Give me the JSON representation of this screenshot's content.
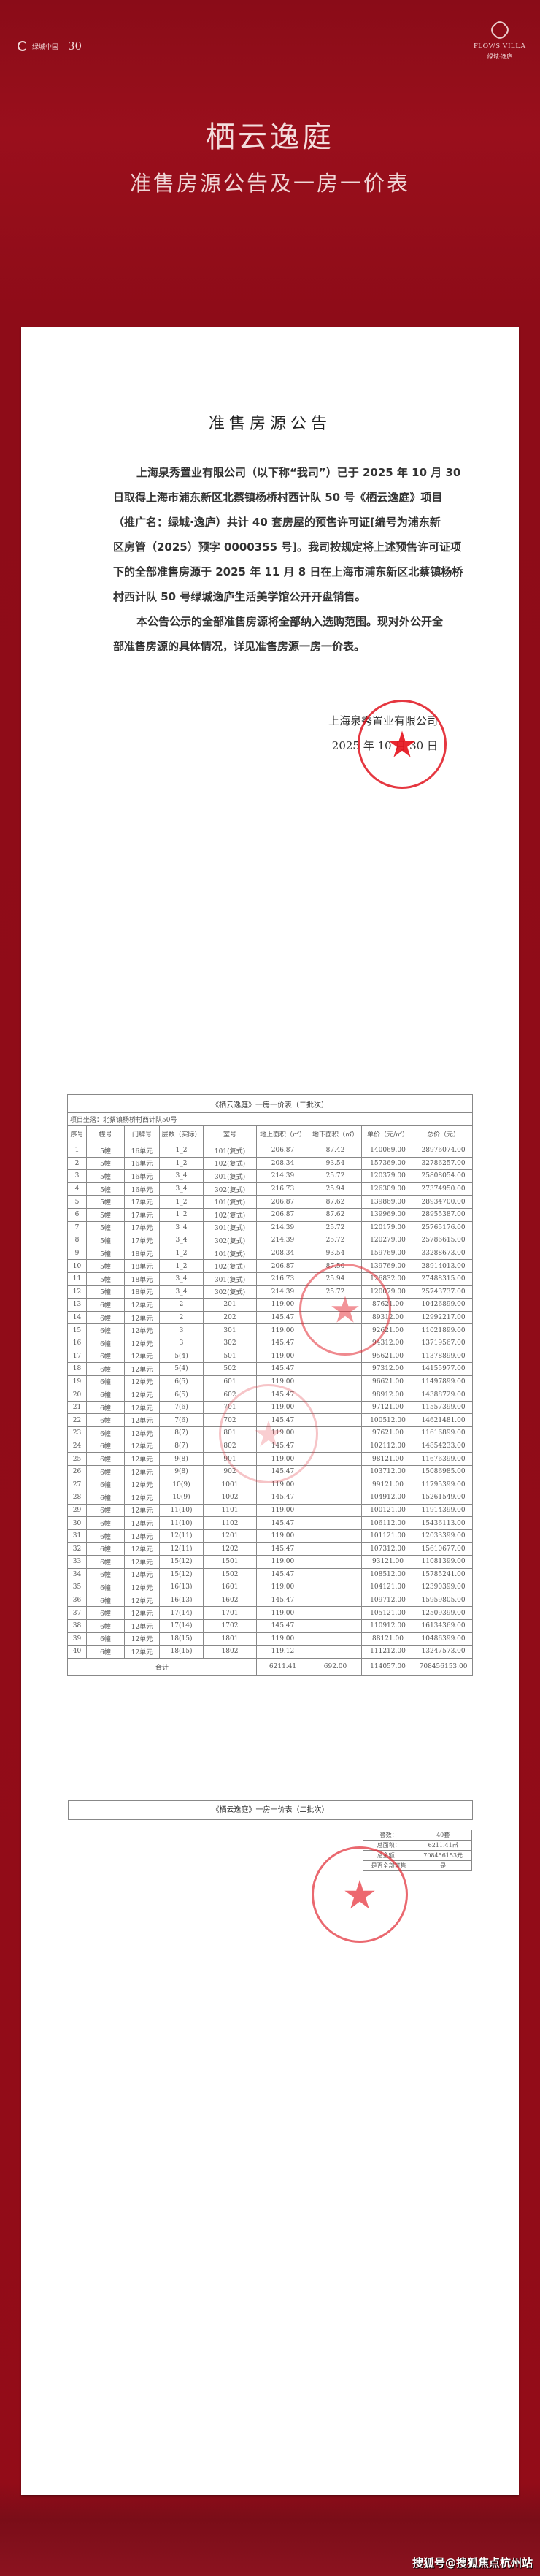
{
  "header": {
    "left_logo": "绿城中国",
    "left_logo_badge": "30",
    "right_logo_en": "FLOWS VILLA",
    "right_logo_cn": "绿城·逸庐",
    "title": "栖云逸庭",
    "subtitle": "准售房源公告及一房一价表"
  },
  "notice": {
    "title": "准售房源公告",
    "paragraph1": [
      "上海泉秀置业有限公司（以下称“我司”）已于 2025 年 10 月 30",
      "日取得上海市浦东新区北蔡镇杨桥村西计队 50 号《栖云逸庭》项目",
      "（推广名：绿城·逸庐）共计 40 套房屋的预售许可证[编号为浦东新",
      "区房管（2025）预字 0000355 号]。我司按规定将上述预售许可证项",
      "下的全部准售房源于 2025 年 11 月 8 日在上海市浦东新区北蔡镇杨桥",
      "村西计队 50 号绿城逸庐生活美学馆公开开盘销售。"
    ],
    "paragraph2": [
      "本公告公示的全部准售房源将全部纳入选购范围。现对外公开全",
      "部准售房源的具体情况，详见准售房源一房一价表。"
    ],
    "signature_company": "上海泉秀置业有限公司",
    "signature_date": "2025 年 10 月 30 日",
    "stamp_text": "上海泉秀置业有限公司"
  },
  "price_table": {
    "title": "《栖云逸庭》一房一价表（二批次）",
    "address": "项目坐落：北蔡镇杨桥村西计队50号",
    "columns": [
      "序号",
      "幢号",
      "门牌号",
      "层数（实际）",
      "室号",
      "地上面积（㎡）",
      "地下面积（㎡）",
      "单价（元/㎡）",
      "总价（元）"
    ],
    "rows": [
      [
        "1",
        "5幢",
        "16单元",
        "1_2",
        "101(复式)",
        "206.87",
        "87.42",
        "140069.00",
        "28976074.00"
      ],
      [
        "2",
        "5幢",
        "16单元",
        "1_2",
        "102(复式)",
        "208.34",
        "93.54",
        "157369.00",
        "32786257.00"
      ],
      [
        "3",
        "5幢",
        "16单元",
        "3_4",
        "301(复式)",
        "214.39",
        "25.72",
        "120379.00",
        "25808054.00"
      ],
      [
        "4",
        "5幢",
        "16单元",
        "3_4",
        "302(复式)",
        "216.73",
        "25.94",
        "126309.00",
        "27374950.00"
      ],
      [
        "5",
        "5幢",
        "17单元",
        "1_2",
        "101(复式)",
        "206.87",
        "87.62",
        "139869.00",
        "28934700.00"
      ],
      [
        "6",
        "5幢",
        "17单元",
        "1_2",
        "102(复式)",
        "206.87",
        "87.62",
        "139969.00",
        "28955387.00"
      ],
      [
        "7",
        "5幢",
        "17单元",
        "3_4",
        "301(复式)",
        "214.39",
        "25.72",
        "120179.00",
        "25765176.00"
      ],
      [
        "8",
        "5幢",
        "17单元",
        "3_4",
        "302(复式)",
        "214.39",
        "25.72",
        "120279.00",
        "25786615.00"
      ],
      [
        "9",
        "5幢",
        "18单元",
        "1_2",
        "101(复式)",
        "208.34",
        "93.54",
        "159769.00",
        "33288673.00"
      ],
      [
        "10",
        "5幢",
        "18单元",
        "1_2",
        "102(复式)",
        "206.87",
        "87.50",
        "139769.00",
        "28914013.00"
      ],
      [
        "11",
        "5幢",
        "18单元",
        "3_4",
        "301(复式)",
        "216.73",
        "25.94",
        "126832.00",
        "27488315.00"
      ],
      [
        "12",
        "5幢",
        "18单元",
        "3_4",
        "302(复式)",
        "214.39",
        "25.72",
        "120079.00",
        "25743737.00"
      ],
      [
        "13",
        "6幢",
        "12单元",
        "2",
        "201",
        "119.00",
        "",
        "87621.00",
        "10426899.00"
      ],
      [
        "14",
        "6幢",
        "12单元",
        "2",
        "202",
        "145.47",
        "",
        "89312.00",
        "12992217.00"
      ],
      [
        "15",
        "6幢",
        "12单元",
        "3",
        "301",
        "119.00",
        "",
        "92621.00",
        "11021899.00"
      ],
      [
        "16",
        "6幢",
        "12单元",
        "3",
        "302",
        "145.47",
        "",
        "94312.00",
        "13719567.00"
      ],
      [
        "17",
        "6幢",
        "12单元",
        "5(4)",
        "501",
        "119.00",
        "",
        "95621.00",
        "11378899.00"
      ],
      [
        "18",
        "6幢",
        "12单元",
        "5(4)",
        "502",
        "145.47",
        "",
        "97312.00",
        "14155977.00"
      ],
      [
        "19",
        "6幢",
        "12单元",
        "6(5)",
        "601",
        "119.00",
        "",
        "96621.00",
        "11497899.00"
      ],
      [
        "20",
        "6幢",
        "12单元",
        "6(5)",
        "602",
        "145.47",
        "",
        "98912.00",
        "14388729.00"
      ],
      [
        "21",
        "6幢",
        "12单元",
        "7(6)",
        "701",
        "119.00",
        "",
        "97121.00",
        "11557399.00"
      ],
      [
        "22",
        "6幢",
        "12单元",
        "7(6)",
        "702",
        "145.47",
        "",
        "100512.00",
        "14621481.00"
      ],
      [
        "23",
        "6幢",
        "12单元",
        "8(7)",
        "801",
        "119.00",
        "",
        "97621.00",
        "11616899.00"
      ],
      [
        "24",
        "6幢",
        "12单元",
        "8(7)",
        "802",
        "145.47",
        "",
        "102112.00",
        "14854233.00"
      ],
      [
        "25",
        "6幢",
        "12单元",
        "9(8)",
        "901",
        "119.00",
        "",
        "98121.00",
        "11676399.00"
      ],
      [
        "26",
        "6幢",
        "12单元",
        "9(8)",
        "902",
        "145.47",
        "",
        "103712.00",
        "15086985.00"
      ],
      [
        "27",
        "6幢",
        "12单元",
        "10(9)",
        "1001",
        "119.00",
        "",
        "99121.00",
        "11795399.00"
      ],
      [
        "28",
        "6幢",
        "12单元",
        "10(9)",
        "1002",
        "145.47",
        "",
        "104912.00",
        "15261549.00"
      ],
      [
        "29",
        "6幢",
        "12单元",
        "11(10)",
        "1101",
        "119.00",
        "",
        "100121.00",
        "11914399.00"
      ],
      [
        "30",
        "6幢",
        "12单元",
        "11(10)",
        "1102",
        "145.47",
        "",
        "106112.00",
        "15436113.00"
      ],
      [
        "31",
        "6幢",
        "12单元",
        "12(11)",
        "1201",
        "119.00",
        "",
        "101121.00",
        "12033399.00"
      ],
      [
        "32",
        "6幢",
        "12单元",
        "12(11)",
        "1202",
        "145.47",
        "",
        "107312.00",
        "15610677.00"
      ],
      [
        "33",
        "6幢",
        "12单元",
        "15(12)",
        "1501",
        "119.00",
        "",
        "93121.00",
        "11081399.00"
      ],
      [
        "34",
        "6幢",
        "12单元",
        "15(12)",
        "1502",
        "145.47",
        "",
        "108512.00",
        "15785241.00"
      ],
      [
        "35",
        "6幢",
        "12单元",
        "16(13)",
        "1601",
        "119.00",
        "",
        "104121.00",
        "12390399.00"
      ],
      [
        "36",
        "6幢",
        "12单元",
        "16(13)",
        "1602",
        "145.47",
        "",
        "109712.00",
        "15959805.00"
      ],
      [
        "37",
        "6幢",
        "12单元",
        "17(14)",
        "1701",
        "119.00",
        "",
        "105121.00",
        "12509399.00"
      ],
      [
        "38",
        "6幢",
        "12单元",
        "17(14)",
        "1702",
        "145.47",
        "",
        "110912.00",
        "16134369.00"
      ],
      [
        "39",
        "6幢",
        "12单元",
        "18(15)",
        "1801",
        "119.00",
        "",
        "88121.00",
        "10486399.00"
      ],
      [
        "40",
        "6幢",
        "12单元",
        "18(15)",
        "1802",
        "119.12",
        "",
        "111212.00",
        "13247573.00"
      ]
    ],
    "total": {
      "label": "合计",
      "above_area": "6211.41",
      "below_area": "692.00",
      "unit_price": "114057.00",
      "total_price": "708456153.00"
    }
  },
  "summary": {
    "title": "《栖云逸庭》一房一价表（二批次）",
    "rows": [
      [
        "套数：",
        "40套"
      ],
      [
        "总面积：",
        "6211.41㎡"
      ],
      [
        "总金额：",
        "708456153元"
      ],
      [
        "是否全部可售",
        "是"
      ]
    ]
  },
  "watermark": "搜狐号@搜狐焦点杭州站",
  "colors": {
    "background": "#930c18",
    "stamp": "#e0141e",
    "panel": "#ffffff"
  }
}
